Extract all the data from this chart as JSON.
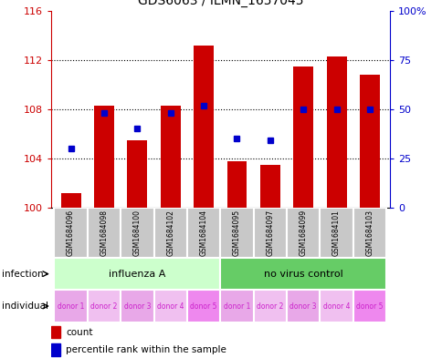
{
  "title": "GDS6063 / ILMN_1657045",
  "samples": [
    "GSM1684096",
    "GSM1684098",
    "GSM1684100",
    "GSM1684102",
    "GSM1684104",
    "GSM1684095",
    "GSM1684097",
    "GSM1684099",
    "GSM1684101",
    "GSM1684103"
  ],
  "bar_values": [
    101.2,
    108.3,
    105.5,
    108.3,
    113.2,
    103.8,
    103.5,
    111.5,
    112.3,
    110.8
  ],
  "percentile_values": [
    30,
    48,
    40,
    48,
    52,
    35,
    34,
    50,
    50,
    50
  ],
  "ylim_left": [
    100,
    116
  ],
  "ylim_right": [
    0,
    100
  ],
  "yticks_left": [
    100,
    104,
    108,
    112,
    116
  ],
  "ytick_labels_left": [
    "100",
    "104",
    "108",
    "112",
    "116"
  ],
  "ytick_labels_right": [
    "0",
    "25",
    "50",
    "75",
    "100%"
  ],
  "yticks_right": [
    0,
    25,
    50,
    75,
    100
  ],
  "infection_groups": [
    {
      "label": "influenza A",
      "start": 0,
      "end": 5,
      "color": "#ccffcc"
    },
    {
      "label": "no virus control",
      "start": 5,
      "end": 10,
      "color": "#66cc66"
    }
  ],
  "individual_labels": [
    "donor 1",
    "donor 2",
    "donor 3",
    "donor 4",
    "donor 5",
    "donor 1",
    "donor 2",
    "donor 3",
    "donor 4",
    "donor 5"
  ],
  "individual_colors": [
    "#e8a8e8",
    "#f0c0f0",
    "#e8a8e8",
    "#f0c0f0",
    "#ee88ee",
    "#e8a8e8",
    "#f0c0f0",
    "#e8a8e8",
    "#f0c0f0",
    "#ee88ee"
  ],
  "bar_color": "#cc0000",
  "dot_color": "#0000cc",
  "left_axis_color": "#cc0000",
  "right_axis_color": "#0000cc",
  "sample_box_color": "#c8c8c8",
  "grid_dotted_ticks": [
    104,
    108,
    112
  ]
}
